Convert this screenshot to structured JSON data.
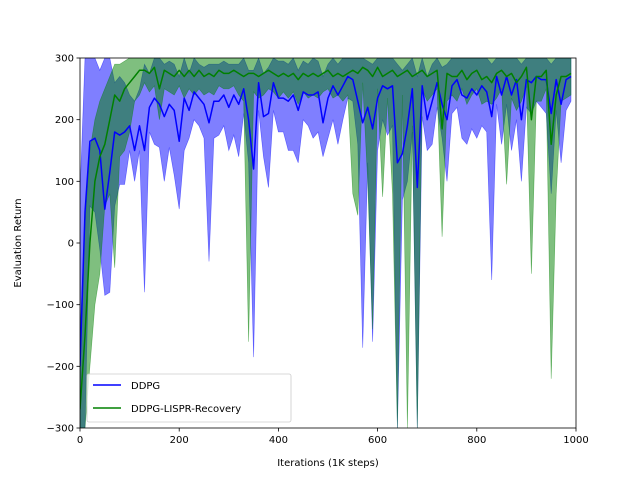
{
  "chart_data": {
    "type": "line",
    "title": "",
    "xlabel": "Iterations (1K steps)",
    "ylabel": "Evaluation Return",
    "xlim": [
      0,
      1000
    ],
    "ylim": [
      -300,
      300
    ],
    "xticks": [
      0,
      200,
      400,
      600,
      800,
      1000
    ],
    "yticks": [
      -300,
      -200,
      -100,
      0,
      100,
      200,
      300
    ],
    "grid": false,
    "legend_position": "lower-left",
    "series": [
      {
        "name": "DDPG",
        "color": "#0000ff",
        "x": [
          0,
          10,
          20,
          30,
          40,
          50,
          60,
          70,
          80,
          90,
          100,
          110,
          120,
          130,
          140,
          150,
          160,
          170,
          180,
          190,
          200,
          210,
          220,
          230,
          240,
          250,
          260,
          270,
          280,
          290,
          300,
          310,
          320,
          330,
          340,
          350,
          360,
          370,
          380,
          390,
          400,
          410,
          420,
          430,
          440,
          450,
          460,
          470,
          480,
          490,
          500,
          510,
          520,
          530,
          540,
          550,
          560,
          570,
          580,
          590,
          600,
          610,
          620,
          630,
          640,
          650,
          660,
          670,
          680,
          690,
          700,
          710,
          720,
          730,
          740,
          750,
          760,
          770,
          780,
          790,
          800,
          810,
          820,
          830,
          840,
          850,
          860,
          870,
          880,
          890,
          900,
          910,
          920,
          930,
          940,
          950,
          960,
          970,
          980,
          990
        ],
        "y": [
          -200,
          50,
          165,
          170,
          150,
          55,
          115,
          180,
          175,
          180,
          190,
          150,
          190,
          150,
          220,
          235,
          225,
          205,
          225,
          215,
          165,
          235,
          215,
          245,
          235,
          225,
          195,
          230,
          230,
          240,
          220,
          240,
          225,
          250,
          200,
          120,
          260,
          205,
          210,
          260,
          235,
          235,
          230,
          240,
          215,
          245,
          240,
          240,
          245,
          195,
          235,
          255,
          240,
          255,
          270,
          265,
          230,
          195,
          220,
          185,
          235,
          255,
          250,
          255,
          130,
          145,
          190,
          250,
          90,
          255,
          200,
          230,
          260,
          225,
          200,
          255,
          265,
          240,
          235,
          250,
          240,
          255,
          245,
          205,
          270,
          240,
          270,
          240,
          265,
          200,
          265,
          260,
          270,
          265,
          265,
          210,
          265,
          225,
          265,
          270
        ],
        "lower": [
          -300,
          -300,
          60,
          50,
          -10,
          -85,
          -80,
          60,
          95,
          95,
          150,
          100,
          150,
          -80,
          180,
          160,
          155,
          100,
          155,
          110,
          55,
          150,
          170,
          200,
          190,
          170,
          -30,
          170,
          175,
          190,
          150,
          175,
          140,
          210,
          130,
          -185,
          215,
          140,
          90,
          215,
          180,
          180,
          150,
          150,
          130,
          200,
          190,
          170,
          180,
          140,
          170,
          200,
          160,
          200,
          235,
          230,
          160,
          -170,
          130,
          -160,
          150,
          200,
          175,
          190,
          -300,
          70,
          100,
          180,
          -300,
          205,
          150,
          160,
          220,
          170,
          100,
          210,
          220,
          170,
          160,
          185,
          170,
          190,
          180,
          -60,
          225,
          160,
          225,
          150,
          200,
          100,
          220,
          210,
          230,
          220,
          210,
          80,
          215,
          130,
          215,
          230
        ],
        "upper": [
          80,
          300,
          300,
          300,
          280,
          300,
          300,
          260,
          270,
          260,
          240,
          230,
          250,
          290,
          275,
          300,
          300,
          290,
          295,
          290,
          270,
          300,
          275,
          300,
          290,
          285,
          290,
          290,
          290,
          295,
          290,
          290,
          290,
          300,
          280,
          280,
          300,
          275,
          285,
          300,
          295,
          295,
          290,
          300,
          280,
          295,
          290,
          300,
          295,
          270,
          290,
          300,
          290,
          300,
          300,
          300,
          300,
          300,
          295,
          290,
          300,
          300,
          300,
          300,
          290,
          280,
          290,
          300,
          270,
          300,
          270,
          290,
          300,
          285,
          290,
          300,
          300,
          300,
          300,
          300,
          300,
          300,
          300,
          290,
          300,
          300,
          300,
          300,
          300,
          290,
          300,
          300,
          300,
          300,
          300,
          290,
          300,
          300,
          300,
          300
        ]
      },
      {
        "name": "DDPG-LISPR-Recovery",
        "color": "#008000",
        "x": [
          0,
          10,
          20,
          30,
          40,
          50,
          60,
          70,
          80,
          90,
          100,
          110,
          120,
          130,
          140,
          150,
          160,
          170,
          180,
          190,
          200,
          210,
          220,
          230,
          240,
          250,
          260,
          270,
          280,
          290,
          300,
          310,
          320,
          330,
          340,
          350,
          360,
          370,
          380,
          390,
          400,
          410,
          420,
          430,
          440,
          450,
          460,
          470,
          480,
          490,
          500,
          510,
          520,
          530,
          540,
          550,
          560,
          570,
          580,
          590,
          600,
          610,
          620,
          630,
          640,
          650,
          660,
          670,
          680,
          690,
          700,
          710,
          720,
          730,
          740,
          750,
          760,
          770,
          780,
          790,
          800,
          810,
          820,
          830,
          840,
          850,
          860,
          870,
          880,
          890,
          900,
          910,
          920,
          930,
          940,
          950,
          960,
          970,
          980,
          990
        ],
        "y": [
          -270,
          -150,
          0,
          100,
          140,
          160,
          200,
          240,
          230,
          250,
          260,
          270,
          280,
          280,
          275,
          285,
          250,
          280,
          275,
          270,
          280,
          270,
          280,
          270,
          280,
          270,
          275,
          270,
          280,
          275,
          275,
          280,
          275,
          270,
          275,
          275,
          270,
          275,
          280,
          275,
          270,
          275,
          270,
          275,
          265,
          275,
          270,
          275,
          270,
          275,
          280,
          270,
          275,
          270,
          275,
          280,
          275,
          285,
          280,
          270,
          285,
          270,
          275,
          280,
          270,
          275,
          280,
          270,
          275,
          280,
          270,
          275,
          280,
          185,
          275,
          270,
          270,
          280,
          265,
          275,
          280,
          265,
          270,
          260,
          275,
          280,
          270,
          275,
          260,
          270,
          285,
          200,
          270,
          270,
          280,
          160,
          240,
          270,
          270,
          275
        ],
        "lower": [
          -300,
          -300,
          -200,
          -100,
          -50,
          60,
          80,
          -40,
          140,
          150,
          180,
          230,
          240,
          260,
          245,
          255,
          200,
          250,
          245,
          240,
          255,
          235,
          250,
          240,
          250,
          240,
          245,
          240,
          255,
          250,
          250,
          255,
          240,
          230,
          -160,
          245,
          235,
          240,
          250,
          245,
          235,
          245,
          235,
          245,
          225,
          245,
          235,
          240,
          235,
          245,
          250,
          235,
          240,
          230,
          240,
          80,
          45,
          260,
          100,
          -140,
          250,
          75,
          235,
          80,
          -300,
          240,
          -300,
          190,
          -300,
          250,
          230,
          240,
          250,
          10,
          230,
          240,
          230,
          250,
          225,
          240,
          250,
          225,
          230,
          225,
          235,
          250,
          95,
          235,
          215,
          230,
          255,
          -50,
          230,
          230,
          250,
          -220,
          80,
          230,
          235,
          240
        ],
        "upper": [
          -150,
          30,
          150,
          200,
          230,
          250,
          270,
          290,
          290,
          295,
          300,
          300,
          300,
          300,
          300,
          300,
          300,
          300,
          300,
          300,
          300,
          300,
          300,
          300,
          300,
          300,
          300,
          300,
          300,
          300,
          300,
          300,
          300,
          300,
          300,
          300,
          300,
          300,
          300,
          300,
          300,
          300,
          300,
          300,
          300,
          300,
          300,
          300,
          300,
          300,
          300,
          300,
          300,
          300,
          300,
          300,
          300,
          300,
          300,
          300,
          300,
          300,
          300,
          300,
          300,
          300,
          300,
          300,
          300,
          300,
          300,
          300,
          300,
          300,
          300,
          300,
          300,
          300,
          300,
          300,
          300,
          300,
          300,
          300,
          300,
          300,
          300,
          300,
          300,
          300,
          300,
          300,
          300,
          300,
          300,
          300,
          300,
          300,
          300,
          300
        ]
      }
    ]
  }
}
